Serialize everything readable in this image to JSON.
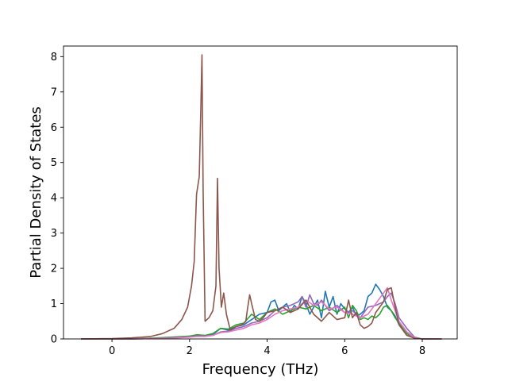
{
  "chart_data": {
    "type": "line",
    "title": "",
    "xlabel": "Frequency (THz)",
    "ylabel": "Partial Density of States",
    "xlim": [
      -1.25,
      8.9
    ],
    "ylim": [
      0,
      8.3
    ],
    "xticks": [
      0,
      2,
      4,
      6,
      8
    ],
    "xtick_labels": [
      "0",
      "2",
      "4",
      "6",
      "8"
    ],
    "yticks": [
      0,
      1,
      2,
      3,
      4,
      5,
      6,
      7,
      8
    ],
    "ytick_labels": [
      "0",
      "1",
      "2",
      "3",
      "4",
      "5",
      "6",
      "7",
      "8"
    ],
    "grid": false,
    "legend": "none",
    "series": [
      {
        "color": "#1f77b4",
        "x": [
          -0.8,
          0.0,
          0.5,
          1.0,
          1.5,
          2.0,
          2.2,
          2.4,
          2.6,
          2.8,
          3.0,
          3.2,
          3.4,
          3.6,
          3.8,
          4.0,
          4.1,
          4.2,
          4.3,
          4.4,
          4.5,
          4.6,
          4.7,
          4.8,
          4.9,
          5.0,
          5.1,
          5.2,
          5.3,
          5.4,
          5.5,
          5.6,
          5.7,
          5.8,
          5.9,
          6.0,
          6.1,
          6.2,
          6.3,
          6.4,
          6.5,
          6.6,
          6.7,
          6.8,
          6.9,
          7.0,
          7.1,
          7.2,
          7.3,
          7.4,
          7.5,
          7.6,
          7.8,
          8.0,
          8.5
        ],
        "y": [
          0,
          0,
          0,
          0.01,
          0.04,
          0.07,
          0.1,
          0.09,
          0.12,
          0.3,
          0.25,
          0.35,
          0.4,
          0.55,
          0.7,
          0.75,
          1.05,
          1.1,
          0.8,
          0.9,
          1.0,
          0.75,
          0.95,
          0.85,
          1.2,
          1.0,
          0.7,
          0.9,
          1.1,
          0.6,
          1.35,
          0.9,
          1.2,
          0.7,
          1.0,
          0.85,
          0.75,
          0.9,
          0.65,
          0.7,
          0.8,
          1.2,
          1.3,
          1.55,
          1.4,
          1.2,
          0.9,
          0.8,
          0.65,
          0.4,
          0.35,
          0.2,
          0.02,
          0,
          0
        ]
      },
      {
        "color": "#2ca02c",
        "x": [
          -0.8,
          0.0,
          0.5,
          1.0,
          1.5,
          2.0,
          2.2,
          2.4,
          2.6,
          2.8,
          3.0,
          3.2,
          3.4,
          3.6,
          3.8,
          4.0,
          4.2,
          4.4,
          4.6,
          4.8,
          5.0,
          5.2,
          5.4,
          5.6,
          5.8,
          6.0,
          6.1,
          6.2,
          6.3,
          6.4,
          6.5,
          6.6,
          6.7,
          6.8,
          6.9,
          7.0,
          7.1,
          7.2,
          7.3,
          7.4,
          7.5,
          7.6,
          7.8,
          8.0,
          8.5
        ],
        "y": [
          0,
          0,
          0,
          0.02,
          0.05,
          0.08,
          0.12,
          0.1,
          0.15,
          0.3,
          0.28,
          0.4,
          0.45,
          0.7,
          0.55,
          0.75,
          0.85,
          0.7,
          0.8,
          0.9,
          0.85,
          0.95,
          0.8,
          0.9,
          0.75,
          0.9,
          0.6,
          0.95,
          0.8,
          0.55,
          0.6,
          0.55,
          0.65,
          0.6,
          0.7,
          0.9,
          0.95,
          0.8,
          0.6,
          0.45,
          0.3,
          0.15,
          0.02,
          0,
          0
        ]
      },
      {
        "color": "#9467bd",
        "x": [
          -0.8,
          0.0,
          0.5,
          1.0,
          1.5,
          2.0,
          2.2,
          2.4,
          2.6,
          2.8,
          3.0,
          3.2,
          3.4,
          3.6,
          3.8,
          4.0,
          4.2,
          4.4,
          4.6,
          4.8,
          4.9,
          5.0,
          5.1,
          5.2,
          5.3,
          5.4,
          5.6,
          5.8,
          6.0,
          6.2,
          6.4,
          6.6,
          6.8,
          7.0,
          7.1,
          7.2,
          7.3,
          7.4,
          7.6,
          7.8,
          8.0,
          8.5
        ],
        "y": [
          0,
          0,
          0,
          0.01,
          0.03,
          0.06,
          0.08,
          0.08,
          0.1,
          0.2,
          0.22,
          0.3,
          0.35,
          0.45,
          0.5,
          0.6,
          0.8,
          0.9,
          0.95,
          1.05,
          1.2,
          0.9,
          1.25,
          1.0,
          0.95,
          1.1,
          0.8,
          0.95,
          0.75,
          0.8,
          0.6,
          0.9,
          0.95,
          1.05,
          1.2,
          1.3,
          1.0,
          0.6,
          0.3,
          0.05,
          0,
          0
        ]
      },
      {
        "color": "#e377c2",
        "x": [
          -0.8,
          0.0,
          0.5,
          1.0,
          1.5,
          2.0,
          2.2,
          2.4,
          2.6,
          2.8,
          3.0,
          3.2,
          3.4,
          3.6,
          3.8,
          4.0,
          4.2,
          4.4,
          4.6,
          4.8,
          5.0,
          5.2,
          5.4,
          5.6,
          5.8,
          6.0,
          6.2,
          6.4,
          6.6,
          6.8,
          7.0,
          7.1,
          7.2,
          7.3,
          7.4,
          7.6,
          7.8,
          8.0,
          8.5
        ],
        "y": [
          0,
          0,
          0,
          0.01,
          0.02,
          0.05,
          0.07,
          0.07,
          0.1,
          0.18,
          0.2,
          0.25,
          0.3,
          0.4,
          0.45,
          0.55,
          0.7,
          0.8,
          0.85,
          0.9,
          1.1,
          0.95,
          1.05,
          0.85,
          0.9,
          0.75,
          0.7,
          0.6,
          0.7,
          1.0,
          1.3,
          1.45,
          1.1,
          0.8,
          0.5,
          0.2,
          0.03,
          0,
          0
        ]
      },
      {
        "color": "#8c564b",
        "x": [
          -0.8,
          0.0,
          0.5,
          1.0,
          1.3,
          1.6,
          1.8,
          1.95,
          2.05,
          2.12,
          2.18,
          2.25,
          2.29,
          2.32,
          2.35,
          2.4,
          2.5,
          2.6,
          2.68,
          2.72,
          2.76,
          2.82,
          2.88,
          2.95,
          3.05,
          3.2,
          3.35,
          3.45,
          3.5,
          3.55,
          3.6,
          3.7,
          3.8,
          3.9,
          4.0,
          4.2,
          4.4,
          4.6,
          4.8,
          5.0,
          5.2,
          5.4,
          5.6,
          5.8,
          6.0,
          6.1,
          6.2,
          6.3,
          6.4,
          6.5,
          6.6,
          6.7,
          6.8,
          6.9,
          7.0,
          7.1,
          7.2,
          7.3,
          7.4,
          7.6,
          7.8,
          8.0,
          8.5
        ],
        "y": [
          0,
          0.01,
          0.03,
          0.07,
          0.15,
          0.3,
          0.55,
          0.9,
          1.5,
          2.2,
          4.1,
          4.6,
          6.5,
          8.05,
          4.2,
          0.5,
          0.6,
          0.8,
          1.5,
          4.55,
          2.0,
          0.9,
          1.3,
          0.7,
          0.25,
          0.35,
          0.4,
          0.5,
          0.9,
          1.25,
          1.0,
          0.55,
          0.5,
          0.6,
          0.75,
          0.8,
          0.9,
          0.75,
          0.85,
          1.1,
          0.7,
          0.5,
          0.75,
          0.55,
          0.6,
          1.1,
          0.6,
          0.75,
          0.4,
          0.3,
          0.35,
          0.45,
          0.75,
          0.9,
          1.05,
          1.4,
          1.45,
          0.9,
          0.4,
          0.1,
          0.02,
          0,
          0
        ]
      }
    ]
  }
}
